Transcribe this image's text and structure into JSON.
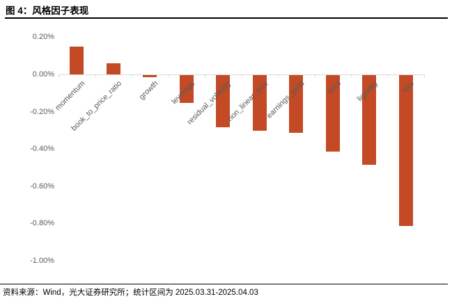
{
  "figure": {
    "title": "图 4：风格因子表现",
    "source_note": "资料来源：Wind，光大证券研究所；统计区间为 2025.03.31-2025.04.03"
  },
  "chart_data": {
    "type": "bar",
    "title": "风格因子表现",
    "categories": [
      "momentum",
      "book_to_price_ratio",
      "growth",
      "leverage",
      "residual_volatility",
      "non_linear_size",
      "earnings_yield",
      "beta",
      "liquidity",
      "size"
    ],
    "values": [
      0.15,
      0.06,
      -0.01,
      -0.15,
      -0.28,
      -0.3,
      -0.31,
      -0.41,
      -0.48,
      -0.81
    ],
    "unit": "%",
    "xlabel": "",
    "ylabel": "",
    "ylim": [
      -1.0,
      0.2
    ],
    "yticks": [
      {
        "value": 0.2,
        "label": "0.20%"
      },
      {
        "value": 0.0,
        "label": "0.00%"
      },
      {
        "value": -0.2,
        "label": "-0.20%"
      },
      {
        "value": -0.4,
        "label": "-0.40%"
      },
      {
        "value": -0.6,
        "label": "-0.60%"
      },
      {
        "value": -0.8,
        "label": "-0.80%"
      },
      {
        "value": -1.0,
        "label": "-1.00%"
      }
    ],
    "grid": false,
    "legend": false,
    "x_labels_rotation_deg": 45,
    "bar_color": "#c34a24",
    "axis_color": "#d9d9d9",
    "tick_label_color": "#595959"
  }
}
